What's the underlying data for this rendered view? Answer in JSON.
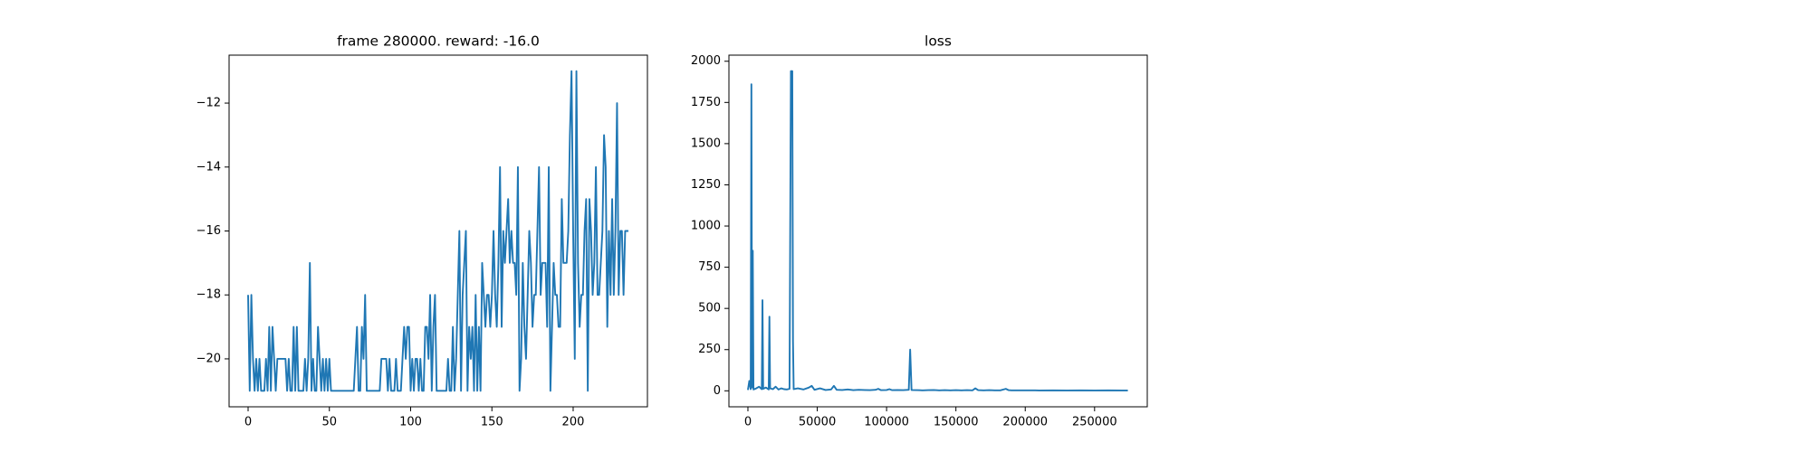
{
  "chart_data": [
    {
      "type": "line",
      "title": "frame 280000. reward: -16.0",
      "color": "#1f77b4",
      "values": [
        -18,
        -21,
        -18,
        -20,
        -21,
        -20,
        -21,
        -20,
        -21,
        -21,
        -21,
        -20,
        -21,
        -19,
        -21,
        -19,
        -20,
        -21,
        -20,
        -20,
        -20,
        -20,
        -20,
        -20,
        -21,
        -20,
        -21,
        -21,
        -19,
        -21,
        -19,
        -21,
        -21,
        -21,
        -21,
        -20,
        -21,
        -20,
        -17,
        -21,
        -20,
        -21,
        -21,
        -19,
        -20,
        -21,
        -20,
        -21,
        -20,
        -21,
        -20,
        -21,
        -21,
        -21,
        -21,
        -21,
        -21,
        -21,
        -21,
        -21,
        -21,
        -21,
        -21,
        -21,
        -21,
        -21,
        -20,
        -19,
        -21,
        -21,
        -19,
        -20,
        -18,
        -21,
        -21,
        -21,
        -21,
        -21,
        -21,
        -21,
        -21,
        -21,
        -20,
        -20,
        -20,
        -20,
        -21,
        -20,
        -21,
        -21,
        -21,
        -20,
        -21,
        -21,
        -21,
        -20,
        -19,
        -20,
        -19,
        -19,
        -21,
        -20,
        -21,
        -20,
        -20,
        -21,
        -20,
        -21,
        -21,
        -19,
        -19,
        -20,
        -18,
        -21,
        -19,
        -18,
        -21,
        -21,
        -21,
        -21,
        -21,
        -21,
        -21,
        -20,
        -21,
        -21,
        -19,
        -21,
        -20,
        -18,
        -16,
        -21,
        -18,
        -17,
        -16,
        -21,
        -19,
        -20,
        -19,
        -21,
        -18,
        -21,
        -19,
        -21,
        -17,
        -18,
        -19,
        -18,
        -18,
        -19,
        -18,
        -16,
        -18,
        -19,
        -17,
        -14,
        -19,
        -16,
        -17,
        -16,
        -15,
        -17,
        -16,
        -17,
        -17,
        -18,
        -14,
        -21,
        -20,
        -17,
        -19,
        -20,
        -18,
        -16,
        -17,
        -19,
        -18,
        -18,
        -16,
        -14,
        -18,
        -17,
        -17,
        -17,
        -19,
        -14,
        -21,
        -19,
        -17,
        -18,
        -18,
        -19,
        -19,
        -15,
        -17,
        -17,
        -17,
        -16,
        -13,
        -11,
        -16,
        -20,
        -11,
        -17,
        -19,
        -18,
        -18,
        -16,
        -15,
        -21,
        -15,
        -16,
        -18,
        -17,
        -14,
        -18,
        -18,
        -17,
        -16,
        -13,
        -14,
        -19,
        -16,
        -18,
        -15,
        -18,
        -16,
        -12,
        -18,
        -16,
        -16,
        -18,
        -16,
        -16,
        -16
      ],
      "xlim": [
        -11.7,
        245.7
      ],
      "xticks": [
        0,
        50,
        100,
        150,
        200
      ],
      "ylim": [
        -21.5,
        -10.5
      ],
      "yticks": [
        {
          "value": -20,
          "label": "−20"
        },
        {
          "value": -18,
          "label": "−18"
        },
        {
          "value": -16,
          "label": "−16"
        },
        {
          "value": -14,
          "label": "−14"
        },
        {
          "value": -12,
          "label": "−12"
        }
      ]
    },
    {
      "type": "line",
      "title": "loss",
      "color": "#1f77b4",
      "x": [
        0,
        1000,
        2000,
        2500,
        3000,
        3500,
        4000,
        6000,
        8000,
        10000,
        10500,
        11000,
        13000,
        15000,
        15500,
        16000,
        18000,
        20000,
        22000,
        24000,
        26000,
        28000,
        30000,
        31000,
        32000,
        32500,
        33000,
        36000,
        40000,
        44000,
        46000,
        48000,
        52000,
        56000,
        60000,
        62000,
        64000,
        68000,
        72000,
        76000,
        80000,
        84000,
        88000,
        92000,
        94000,
        96000,
        100000,
        102000,
        104000,
        108000,
        112000,
        116000,
        117000,
        118000,
        122000,
        126000,
        130000,
        134000,
        138000,
        142000,
        146000,
        150000,
        154000,
        158000,
        162000,
        164000,
        166000,
        170000,
        174000,
        178000,
        182000,
        186000,
        188000,
        190000,
        194000,
        198000,
        202000,
        206000,
        210000,
        220000,
        230000,
        240000,
        250000,
        260000,
        270000,
        274000
      ],
      "values": [
        5,
        60,
        10,
        1860,
        20,
        850,
        8,
        15,
        25,
        10,
        550,
        12,
        20,
        8,
        450,
        15,
        10,
        25,
        8,
        15,
        10,
        8,
        12,
        1940,
        1940,
        300,
        10,
        15,
        8,
        20,
        30,
        6,
        15,
        5,
        8,
        30,
        6,
        5,
        8,
        4,
        6,
        5,
        4,
        6,
        12,
        4,
        5,
        10,
        4,
        5,
        4,
        6,
        250,
        5,
        4,
        3,
        4,
        5,
        3,
        4,
        3,
        4,
        3,
        4,
        3,
        15,
        4,
        3,
        4,
        3,
        3,
        12,
        4,
        3,
        3,
        3,
        3,
        3,
        2,
        3,
        2,
        3,
        2,
        3,
        2,
        2
      ],
      "xlim": [
        -13700,
        288000
      ],
      "xticks": [
        0,
        50000,
        100000,
        150000,
        200000,
        250000
      ],
      "ylim": [
        -97,
        2037
      ],
      "yticks": [
        0,
        250,
        500,
        750,
        1000,
        1250,
        1500,
        1750,
        2000
      ]
    }
  ]
}
